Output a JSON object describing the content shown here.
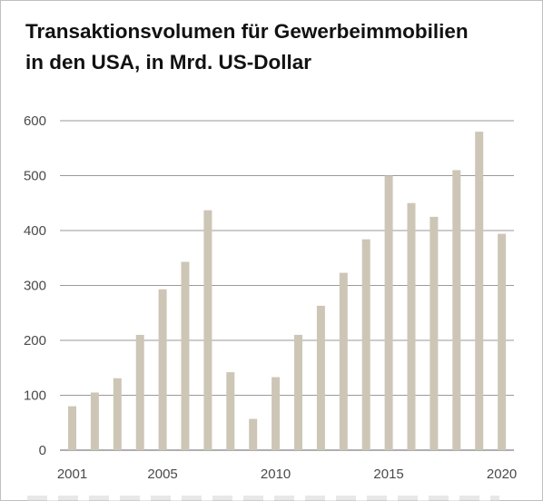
{
  "chart_data": {
    "type": "bar",
    "title_lines": [
      "Transaktionsvolumen für Gewerbeimmobilien",
      "in den USA, in Mrd. US-Dollar"
    ],
    "categories": [
      "2001",
      "2002",
      "2003",
      "2004",
      "2005",
      "2006",
      "2007",
      "2008",
      "2009",
      "2010",
      "2011",
      "2012",
      "2013",
      "2014",
      "2015",
      "2016",
      "2017",
      "2018",
      "2019",
      "2020"
    ],
    "values": [
      80,
      105,
      131,
      210,
      293,
      343,
      437,
      142,
      57,
      133,
      210,
      263,
      323,
      384,
      500,
      450,
      425,
      510,
      580,
      394
    ],
    "x_tick_labels": [
      "2001",
      "2005",
      "2010",
      "2015",
      "2020"
    ],
    "y_ticks": [
      0,
      100,
      200,
      300,
      400,
      500,
      600
    ],
    "ylim": [
      0,
      600
    ],
    "grid": true,
    "bar_color": "#cdc6b6"
  }
}
